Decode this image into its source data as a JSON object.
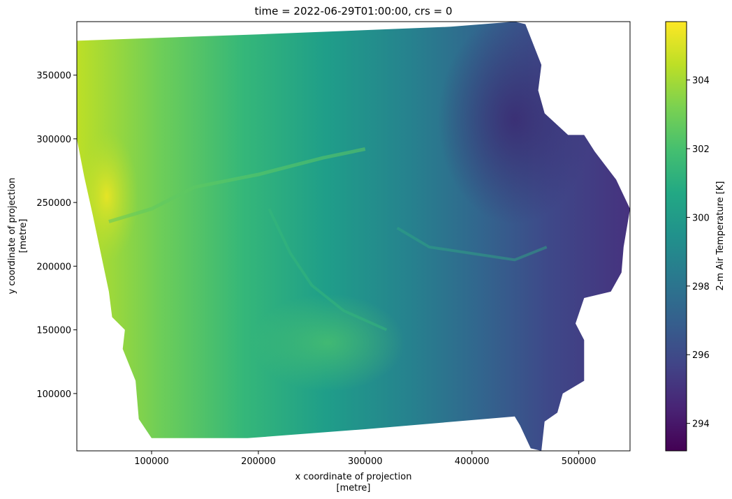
{
  "chart_data": {
    "type": "heatmap",
    "title": "time = 2022-06-29T01:00:00, crs = 0",
    "xlabel_line1": "x coordinate of projection",
    "xlabel_line2": "[metre]",
    "ylabel_line1": "y coordinate of projection",
    "ylabel_line2": "[metre]",
    "colorbar_label": "2-m Air Temperature [K]",
    "colormap": "viridis",
    "xlim": [
      30000,
      548000
    ],
    "ylim": [
      55000,
      392000
    ],
    "clim": [
      293.2,
      305.7
    ],
    "xticks": [
      100000,
      200000,
      300000,
      400000,
      500000
    ],
    "xtick_labels": [
      "100000",
      "200000",
      "300000",
      "400000",
      "500000"
    ],
    "yticks": [
      100000,
      150000,
      200000,
      250000,
      300000,
      350000
    ],
    "ytick_labels": [
      "100000",
      "150000",
      "200000",
      "250000",
      "300000",
      "350000"
    ],
    "cticks": [
      294,
      296,
      298,
      300,
      302,
      304
    ],
    "ctick_labels": [
      "294",
      "296",
      "298",
      "300",
      "302",
      "304"
    ],
    "domain_outline": [
      [
        30000,
        377000
      ],
      [
        200000,
        382000
      ],
      [
        380000,
        388000
      ],
      [
        440000,
        392000
      ],
      [
        450000,
        390000
      ],
      [
        465000,
        358000
      ],
      [
        462000,
        338000
      ],
      [
        468000,
        320000
      ],
      [
        490000,
        303000
      ],
      [
        505000,
        303000
      ],
      [
        515000,
        290000
      ],
      [
        535000,
        268000
      ],
      [
        548000,
        245000
      ],
      [
        542000,
        215000
      ],
      [
        540000,
        195000
      ],
      [
        530000,
        180000
      ],
      [
        505000,
        175000
      ],
      [
        497000,
        155000
      ],
      [
        505000,
        142000
      ],
      [
        505000,
        110000
      ],
      [
        485000,
        100000
      ],
      [
        480000,
        85000
      ],
      [
        468000,
        78000
      ],
      [
        465000,
        55000
      ],
      [
        455000,
        57000
      ],
      [
        445000,
        75000
      ],
      [
        440000,
        82000
      ],
      [
        300000,
        72000
      ],
      [
        190000,
        65000
      ],
      [
        100000,
        65000
      ],
      [
        88000,
        80000
      ],
      [
        85000,
        110000
      ],
      [
        73000,
        135000
      ],
      [
        75000,
        150000
      ],
      [
        63000,
        160000
      ],
      [
        60000,
        180000
      ],
      [
        55000,
        200000
      ],
      [
        45000,
        240000
      ],
      [
        37000,
        270000
      ],
      [
        30000,
        300000
      ]
    ],
    "value_summary": {
      "western_border_max": 305.5,
      "western_region": 301,
      "central_region": 299,
      "eastern_region": 297,
      "northeast_min": 293.5,
      "river_valley_highlights": 301.5
    }
  }
}
